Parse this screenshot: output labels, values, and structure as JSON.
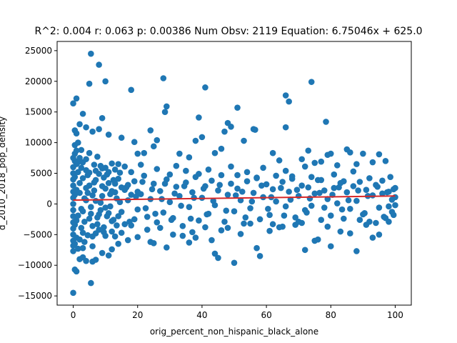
{
  "chart_data": {
    "type": "scatter",
    "title": "R^2: 0.004 r: 0.063 p: 0.00386 Num Obsv: 2119 Equation: 6.75046x + 625.0",
    "xlabel": "orig_percent_non_hispanic_black_alone",
    "ylabel": "d_2010_2018_pop_density",
    "xlim": [
      -5,
      105
    ],
    "ylim": [
      -16500,
      26500
    ],
    "x_ticks": [
      0,
      20,
      40,
      60,
      80,
      100
    ],
    "x_tick_labels": [
      "0",
      "20",
      "40",
      "60",
      "80",
      "100"
    ],
    "y_ticks": [
      -15000,
      -10000,
      -5000,
      0,
      5000,
      10000,
      15000,
      20000,
      25000
    ],
    "y_tick_labels": [
      "−15000",
      "−10000",
      "−5000",
      "0",
      "5000",
      "10000",
      "15000",
      "20000",
      "25000"
    ],
    "grid": false,
    "point_color": "#1f77b4",
    "line_color": "#d62728",
    "regression": {
      "slope": 6.75046,
      "intercept": 625.0,
      "x_range": [
        0,
        100
      ]
    },
    "points": [
      [
        0.0,
        -14500
      ],
      [
        0.5,
        -10700
      ],
      [
        1.0,
        -11000
      ],
      [
        2.0,
        -9000
      ],
      [
        3.0,
        -8700
      ],
      [
        4.0,
        -9300
      ],
      [
        5.5,
        -12900
      ],
      [
        6.0,
        -9400
      ],
      [
        7.0,
        -9100
      ],
      [
        9.0,
        -8000
      ],
      [
        11.0,
        -8400
      ],
      [
        12.0,
        -7400
      ],
      [
        0.0,
        16400
      ],
      [
        1.0,
        17200
      ],
      [
        3.0,
        14700
      ],
      [
        5.0,
        19600
      ],
      [
        5.5,
        24500
      ],
      [
        8.0,
        22700
      ],
      [
        9.0,
        14000
      ],
      [
        10.0,
        20000
      ],
      [
        18.0,
        18600
      ],
      [
        28.0,
        20500
      ],
      [
        28.5,
        15000
      ],
      [
        29.0,
        15900
      ],
      [
        41.0,
        19000
      ],
      [
        51.0,
        15700
      ],
      [
        66.0,
        17700
      ],
      [
        67.0,
        16700
      ],
      [
        74.0,
        19900
      ],
      [
        78.5,
        13400
      ],
      [
        0.5,
        12000
      ],
      [
        1.0,
        11500
      ],
      [
        2.0,
        13000
      ],
      [
        4.0,
        12500
      ],
      [
        6.0,
        11800
      ],
      [
        8.0,
        12200
      ],
      [
        11.0,
        11300
      ],
      [
        15.0,
        10800
      ],
      [
        19.0,
        10100
      ],
      [
        24.0,
        12000
      ],
      [
        26.0,
        10400
      ],
      [
        38.0,
        10300
      ],
      [
        39.0,
        14100
      ],
      [
        40.0,
        10900
      ],
      [
        47.0,
        11800
      ],
      [
        48.0,
        13200
      ],
      [
        49.0,
        12600
      ],
      [
        53.0,
        10300
      ],
      [
        56.0,
        12200
      ],
      [
        56.5,
        12100
      ],
      [
        66.0,
        12500
      ],
      [
        71.0,
        7300
      ],
      [
        73.0,
        8700
      ],
      [
        79.0,
        8000
      ],
      [
        80.0,
        8200
      ],
      [
        85.0,
        8900
      ],
      [
        86.0,
        8400
      ],
      [
        90.0,
        8200
      ],
      [
        95.0,
        8100
      ],
      [
        20.0,
        8200
      ],
      [
        22.0,
        8300
      ],
      [
        25.0,
        9400
      ],
      [
        33.0,
        8200
      ],
      [
        36.0,
        7600
      ],
      [
        44.0,
        8300
      ],
      [
        46.0,
        9000
      ],
      [
        62.0,
        8300
      ],
      [
        64.0,
        7100
      ],
      [
        72.0,
        6100
      ],
      [
        75.0,
        6700
      ],
      [
        77.0,
        6900
      ],
      [
        82.0,
        6300
      ],
      [
        88.0,
        6500
      ],
      [
        93.0,
        6800
      ],
      [
        97.0,
        7000
      ],
      [
        0.0,
        -7700
      ],
      [
        1.5,
        -7300
      ],
      [
        3.0,
        -7200
      ],
      [
        6.0,
        -6900
      ],
      [
        14.0,
        -6500
      ],
      [
        17.0,
        -5900
      ],
      [
        20.0,
        -5400
      ],
      [
        24.0,
        -6200
      ],
      [
        25.0,
        -6400
      ],
      [
        29.0,
        -7100
      ],
      [
        36.0,
        -6300
      ],
      [
        38.0,
        -5500
      ],
      [
        43.0,
        -5900
      ],
      [
        44.0,
        -8100
      ],
      [
        45.0,
        -8800
      ],
      [
        50.0,
        -9600
      ],
      [
        57.0,
        -7200
      ],
      [
        58.0,
        -8500
      ],
      [
        72.0,
        -7500
      ],
      [
        75.0,
        -6000
      ],
      [
        76.0,
        -5800
      ],
      [
        80.0,
        -6900
      ],
      [
        88.0,
        -7700
      ],
      [
        93.0,
        -5500
      ],
      [
        95.0,
        -5000
      ],
      [
        31.0,
        -5000
      ],
      [
        34.0,
        -5200
      ],
      [
        41.0,
        -3800
      ],
      [
        48.0,
        -3900
      ],
      [
        52.0,
        -4900
      ],
      [
        55.0,
        -3200
      ],
      [
        61.0,
        -4400
      ],
      [
        65.0,
        -3700
      ],
      [
        69.0,
        -3400
      ],
      [
        71.0,
        -3100
      ],
      [
        83.0,
        -4500
      ],
      [
        86.0,
        -4800
      ],
      [
        91.0,
        -3400
      ],
      [
        98.0,
        -2900
      ],
      [
        0.0,
        6000
      ],
      [
        0.0,
        5000
      ],
      [
        0.0,
        4000
      ],
      [
        0.0,
        3000
      ],
      [
        0.0,
        2000
      ],
      [
        0.0,
        1000
      ],
      [
        0.0,
        0
      ],
      [
        0.0,
        -1000
      ],
      [
        0.0,
        -2000
      ],
      [
        0.0,
        -3000
      ],
      [
        0.0,
        -4000
      ],
      [
        0.0,
        -5000
      ],
      [
        0.0,
        -6000
      ],
      [
        0.5,
        9600
      ],
      [
        0.5,
        8200
      ],
      [
        0.5,
        7000
      ],
      [
        0.5,
        -6500
      ],
      [
        1.0,
        6500
      ],
      [
        1.0,
        -5500
      ],
      [
        1.5,
        10000
      ],
      [
        2.0,
        7500
      ],
      [
        2.0,
        -5800
      ],
      [
        2.5,
        8800
      ],
      [
        3.0,
        6800
      ],
      [
        3.5,
        -6200
      ],
      [
        4.0,
        7300
      ],
      [
        4.5,
        -5100
      ],
      [
        5.0,
        8300
      ],
      [
        6.5,
        6400
      ],
      [
        7.0,
        -4800
      ],
      [
        7.5,
        7700
      ],
      [
        8.5,
        6200
      ],
      [
        9.5,
        -4600
      ],
      [
        10.0,
        5900
      ],
      [
        12.0,
        6600
      ],
      [
        13.0,
        5600
      ],
      [
        15.0,
        -4700
      ],
      [
        16.0,
        6100
      ],
      [
        18.0,
        5200
      ],
      [
        21.0,
        6400
      ],
      [
        23.0,
        -4200
      ],
      [
        26.0,
        5700
      ],
      [
        27.0,
        -3900
      ],
      [
        30.0,
        4800
      ],
      [
        32.0,
        6200
      ],
      [
        35.0,
        5400
      ],
      [
        37.0,
        -4600
      ],
      [
        39.0,
        4900
      ],
      [
        42.0,
        5600
      ],
      [
        46.0,
        -4300
      ],
      [
        49.0,
        6100
      ],
      [
        51.0,
        4700
      ],
      [
        54.0,
        5200
      ],
      [
        57.0,
        4300
      ],
      [
        59.0,
        5900
      ],
      [
        62.0,
        -3300
      ],
      [
        63.0,
        4600
      ],
      [
        66.0,
        5400
      ],
      [
        68.0,
        4100
      ],
      [
        70.0,
        -2900
      ],
      [
        74.0,
        4400
      ],
      [
        77.0,
        3900
      ],
      [
        79.0,
        -3700
      ],
      [
        81.0,
        4800
      ],
      [
        84.0,
        3700
      ],
      [
        87.0,
        5300
      ],
      [
        89.0,
        -2600
      ],
      [
        92.0,
        4200
      ],
      [
        94.0,
        -3100
      ],
      [
        96.0,
        3800
      ],
      [
        98.5,
        4400
      ],
      [
        99.5,
        2400
      ],
      [
        100.0,
        1100
      ],
      [
        100.0,
        -200
      ],
      [
        99.0,
        -1300
      ],
      [
        97.5,
        1900
      ],
      [
        96.5,
        -2100
      ],
      [
        94.5,
        2800
      ],
      [
        91.5,
        1300
      ],
      [
        90.5,
        -1500
      ],
      [
        88.5,
        2200
      ],
      [
        85.5,
        600
      ],
      [
        83.5,
        -900
      ],
      [
        82.5,
        2700
      ],
      [
        80.5,
        1500
      ],
      [
        78.0,
        -600
      ],
      [
        76.5,
        1800
      ],
      [
        73.5,
        900
      ],
      [
        72.5,
        -1400
      ],
      [
        69.5,
        2300
      ],
      [
        67.5,
        700
      ],
      [
        65.5,
        -1900
      ],
      [
        64.5,
        2600
      ],
      [
        61.5,
        1100
      ],
      [
        60.5,
        -800
      ],
      [
        58.5,
        3000
      ],
      [
        55.5,
        400
      ],
      [
        53.5,
        -2200
      ],
      [
        52.5,
        2000
      ],
      [
        50.5,
        1400
      ],
      [
        47.5,
        -1100
      ],
      [
        45.5,
        3100
      ],
      [
        43.5,
        500
      ],
      [
        41.5,
        -1700
      ],
      [
        40.5,
        2500
      ],
      [
        37.5,
        1000
      ],
      [
        36.5,
        -2400
      ],
      [
        34.5,
        2900
      ],
      [
        33.5,
        -300
      ],
      [
        31.5,
        1700
      ],
      [
        30.5,
        -2600
      ],
      [
        28.5,
        3300
      ],
      [
        27.5,
        800
      ],
      [
        25.5,
        -1600
      ],
      [
        24.5,
        2400
      ],
      [
        22.5,
        -700
      ],
      [
        21.5,
        3600
      ],
      [
        19.5,
        1200
      ],
      [
        17.5,
        -2900
      ],
      [
        16.5,
        2700
      ],
      [
        14.5,
        300
      ],
      [
        13.5,
        -3500
      ],
      [
        12.5,
        3900
      ],
      [
        11.5,
        1600
      ],
      [
        10.5,
        -2000
      ],
      [
        9.5,
        4300
      ],
      [
        8.5,
        200
      ],
      [
        7.5,
        -3300
      ],
      [
        6.5,
        3500
      ],
      [
        5.5,
        -500
      ],
      [
        4.5,
        4700
      ],
      [
        3.5,
        900
      ],
      [
        2.5,
        -3900
      ],
      [
        1.5,
        5200
      ],
      [
        1.0,
        -2700
      ],
      [
        0.5,
        4400
      ],
      [
        2.0,
        1800
      ],
      [
        3.0,
        -1200
      ],
      [
        4.0,
        2600
      ],
      [
        5.0,
        -2400
      ],
      [
        6.0,
        1400
      ],
      [
        7.0,
        3900
      ],
      [
        8.0,
        -1700
      ],
      [
        9.0,
        2900
      ],
      [
        10.0,
        -600
      ],
      [
        11.0,
        3400
      ],
      [
        12.0,
        -2800
      ],
      [
        13.0,
        1900
      ],
      [
        14.0,
        4100
      ],
      [
        15.0,
        -1300
      ],
      [
        16.0,
        2300
      ],
      [
        17.0,
        600
      ],
      [
        18.0,
        -3500
      ],
      [
        19.0,
        3700
      ],
      [
        20.0,
        -900
      ],
      [
        21.0,
        1600
      ],
      [
        22.0,
        4600
      ],
      [
        23.0,
        -2100
      ],
      [
        24.0,
        800
      ],
      [
        25.0,
        3300
      ],
      [
        26.0,
        -3000
      ],
      [
        27.0,
        2100
      ],
      [
        28.0,
        -1400
      ],
      [
        29.0,
        4000
      ],
      [
        30.0,
        300
      ],
      [
        31.0,
        -2300
      ],
      [
        32.0,
        2800
      ],
      [
        33.0,
        1300
      ],
      [
        34.0,
        -3600
      ],
      [
        35.0,
        3500
      ],
      [
        36.0,
        -500
      ],
      [
        37.0,
        1900
      ],
      [
        38.0,
        4400
      ],
      [
        39.0,
        -2700
      ],
      [
        40.0,
        1000
      ],
      [
        41.0,
        2900
      ],
      [
        42.0,
        -1600
      ],
      [
        43.0,
        3800
      ],
      [
        44.0,
        -200
      ],
      [
        45.0,
        2200
      ],
      [
        46.0,
        4700
      ],
      [
        47.0,
        -2900
      ],
      [
        48.0,
        1500
      ],
      [
        49.0,
        3300
      ],
      [
        50.0,
        -1200
      ],
      [
        51.0,
        2500
      ],
      [
        52.0,
        600
      ],
      [
        53.0,
        -3200
      ],
      [
        54.0,
        3700
      ],
      [
        55.0,
        -700
      ],
      [
        56.0,
        1800
      ],
      [
        57.0,
        4200
      ],
      [
        58.0,
        -2500
      ],
      [
        59.0,
        1100
      ],
      [
        60.0,
        3200
      ],
      [
        61.0,
        -1800
      ],
      [
        62.0,
        2400
      ],
      [
        63.0,
        400
      ],
      [
        64.0,
        -3800
      ],
      [
        65.0,
        3600
      ],
      [
        66.0,
        -400
      ],
      [
        67.0,
        2000
      ],
      [
        68.0,
        4500
      ],
      [
        69.0,
        -2200
      ],
      [
        70.0,
        1300
      ],
      [
        71.0,
        3000
      ],
      [
        72.0,
        -1000
      ],
      [
        73.0,
        2700
      ],
      [
        74.0,
        -300
      ],
      [
        75.0,
        1700
      ],
      [
        76.0,
        3900
      ],
      [
        77.0,
        -2600
      ],
      [
        78.0,
        2200
      ],
      [
        79.0,
        800
      ],
      [
        80.0,
        -1900
      ],
      [
        81.0,
        2600
      ],
      [
        82.0,
        100
      ],
      [
        83.0,
        3400
      ],
      [
        84.0,
        -2400
      ],
      [
        85.0,
        1900
      ],
      [
        86.0,
        -800
      ],
      [
        87.0,
        2900
      ],
      [
        88.0,
        500
      ],
      [
        89.0,
        3600
      ],
      [
        90.0,
        -1700
      ],
      [
        91.0,
        2300
      ],
      [
        92.0,
        -2900
      ],
      [
        93.0,
        1400
      ],
      [
        94.0,
        3100
      ],
      [
        95.0,
        -600
      ],
      [
        96.0,
        1700
      ],
      [
        97.0,
        -2300
      ],
      [
        98.0,
        2000
      ],
      [
        99.0,
        700
      ],
      [
        100.0,
        2600
      ],
      [
        99.5,
        -1800
      ],
      [
        98.0,
        -400
      ],
      [
        0.5,
        1500
      ],
      [
        1.0,
        2300
      ],
      [
        1.5,
        -1900
      ],
      [
        2.0,
        3400
      ],
      [
        2.5,
        -800
      ],
      [
        3.0,
        4200
      ],
      [
        3.5,
        -2900
      ],
      [
        4.0,
        600
      ],
      [
        4.5,
        1800
      ],
      [
        5.0,
        3000
      ],
      [
        5.5,
        -1600
      ],
      [
        6.0,
        -3600
      ],
      [
        6.5,
        2200
      ],
      [
        7.0,
        500
      ],
      [
        7.5,
        -2200
      ],
      [
        8.0,
        4900
      ],
      [
        8.5,
        -1000
      ],
      [
        9.0,
        1300
      ],
      [
        9.5,
        -3800
      ],
      [
        10.0,
        2500
      ],
      [
        10.5,
        4800
      ],
      [
        11.0,
        -1500
      ],
      [
        11.5,
        -400
      ],
      [
        12.0,
        2100
      ],
      [
        12.5,
        -2600
      ],
      [
        13.0,
        3300
      ],
      [
        13.5,
        900
      ],
      [
        14.0,
        -2000
      ],
      [
        14.5,
        5100
      ],
      [
        15.0,
        2700
      ],
      [
        16.0,
        -3300
      ],
      [
        17.0,
        3100
      ],
      [
        18.0,
        1500
      ],
      [
        19.0,
        -2500
      ],
      [
        20.0,
        2000
      ],
      [
        0.0,
        7500
      ],
      [
        0.0,
        -6800
      ],
      [
        0.5,
        -3400
      ],
      [
        1.0,
        8700
      ],
      [
        1.5,
        6800
      ],
      [
        2.5,
        5900
      ],
      [
        3.0,
        -4700
      ],
      [
        4.0,
        5500
      ],
      [
        5.0,
        5100
      ],
      [
        6.0,
        -5300
      ],
      [
        7.0,
        5400
      ],
      [
        8.0,
        -4200
      ],
      [
        9.0,
        5800
      ],
      [
        10.0,
        -5200
      ],
      [
        11.0,
        5200
      ],
      [
        12.0,
        -4500
      ],
      [
        13.0,
        -5300
      ],
      [
        14.0,
        6500
      ]
    ]
  }
}
